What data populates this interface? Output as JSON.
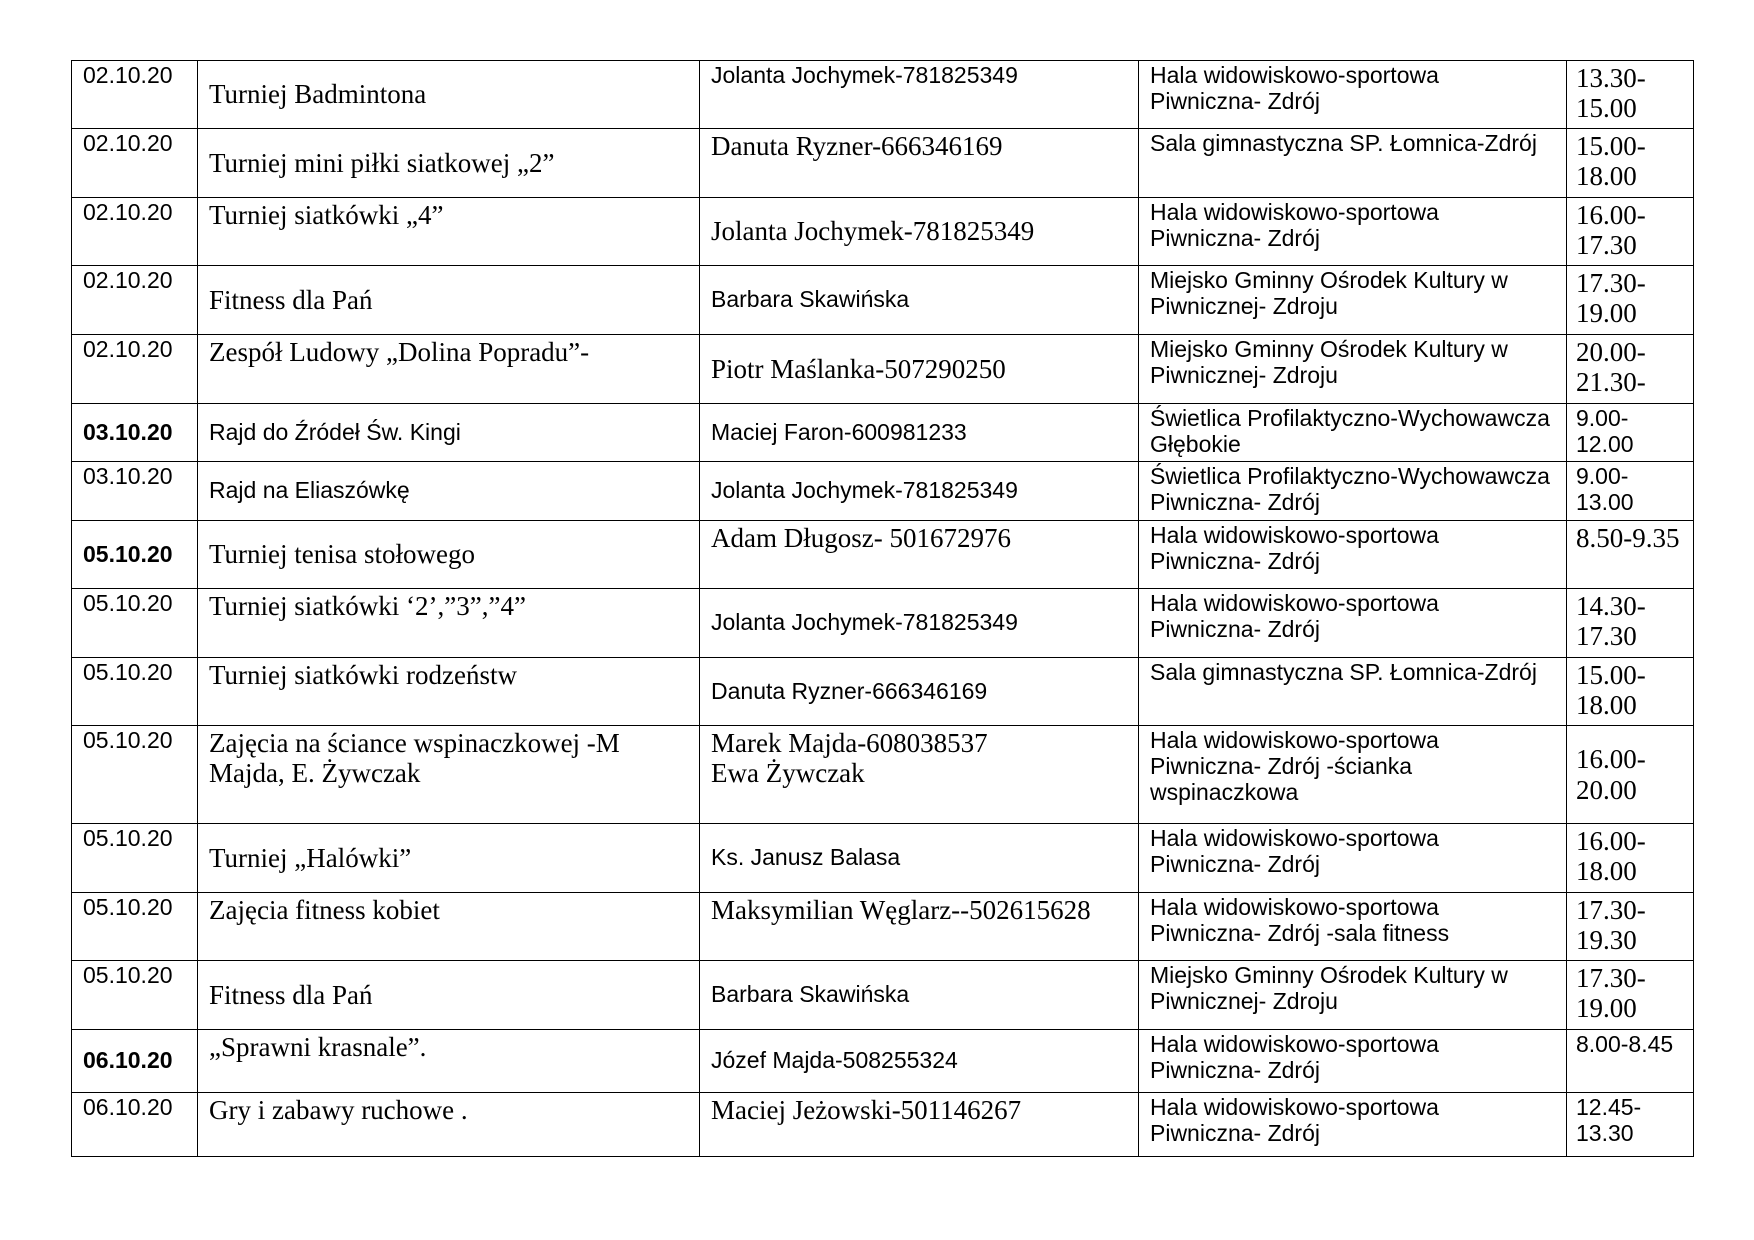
{
  "rows": [
    {
      "date": "02.10.20",
      "activity": "Turniej Badmintona",
      "contact": "Jolanta Jochymek-781825349",
      "place": "Hala widowiskowo-sportowa Piwniczna- Zdrój",
      "time": "13.30-15.00"
    },
    {
      "date": "02.10.20",
      "activity": "Turniej mini piłki siatkowej „2”",
      "contact": "Danuta Ryzner-666346169",
      "place": "Sala gimnastyczna SP. Łomnica-Zdrój",
      "time": "15.00-18.00"
    },
    {
      "date": "02.10.20",
      "activity": "Turniej siatkówki „4”",
      "contact": "Jolanta Jochymek-781825349",
      "place": "Hala widowiskowo-sportowa Piwniczna- Zdrój",
      "time": "16.00-17.30"
    },
    {
      "date": "02.10.20",
      "activity": "Fitness dla Pań",
      "contact": "Barbara Skawińska",
      "place": "Miejsko Gminny Ośrodek Kultury w Piwnicznej- Zdroju",
      "time": "17.30-19.00"
    },
    {
      "date": "02.10.20",
      "activity": "Zespół Ludowy  „Dolina Popradu”-",
      "contact": "Piotr Maślanka-507290250",
      "place": "Miejsko Gminny Ośrodek Kultury w Piwnicznej- Zdroju",
      "time": "20.00-21.30-"
    },
    {
      "date": "03.10.20",
      "activity": "Rajd do Źródeł Św. Kingi",
      "contact": "Maciej Faron-600981233",
      "place": "Świetlica Profilaktyczno-Wychowawcza Głębokie",
      "time": "9.00-12.00"
    },
    {
      "date": "03.10.20",
      "activity": "Rajd na Eliaszówkę",
      "contact": "Jolanta Jochymek-781825349",
      "place": "Świetlica Profilaktyczno-Wychowawcza Piwniczna- Zdrój",
      "time": "9.00-13.00"
    },
    {
      "date": "05.10.20",
      "activity": "Turniej tenisa stołowego",
      "contact": "Adam  Długosz- 501672976",
      "place": "Hala widowiskowo-sportowa Piwniczna- Zdrój",
      "time": "8.50-9.35"
    },
    {
      "date": "05.10.20",
      "activity": "Turniej siatkówki ‘2’,”3”,”4”",
      "contact": "Jolanta Jochymek-781825349",
      "place": "Hala widowiskowo-sportowa Piwniczna- Zdrój",
      "time": "14.30-17.30"
    },
    {
      "date": "05.10.20",
      "activity": "Turniej siatkówki rodzeństw",
      "contact": "Danuta Ryzner-666346169",
      "place": "Sala gimnastyczna SP. Łomnica-Zdrój",
      "time": "15.00-18.00"
    },
    {
      "date": "05.10.20",
      "activity": "Zajęcia na ściance wspinaczkowej -M Majda, E. Żywczak",
      "contact": "Marek Majda-608038537\nEwa Żywczak",
      "place": "Hala widowiskowo-sportowa Piwniczna- Zdrój -ścianka wspinaczkowa",
      "time": "16.00-20.00"
    },
    {
      "date": "05.10.20",
      "activity": "Turniej „Halówki”",
      "contact": "Ks. Janusz Balasa",
      "place": "Hala widowiskowo-sportowa Piwniczna- Zdrój",
      "time": "16.00-18.00"
    },
    {
      "date": "05.10.20",
      "activity": "Zajęcia fitness  kobiet",
      "contact": "Maksymilian Węglarz--502615628",
      "place": "Hala widowiskowo-sportowa Piwniczna- Zdrój -sala fitness",
      "time": "17.30-19.30"
    },
    {
      "date": "05.10.20",
      "activity": "Fitness dla Pań",
      "contact": "Barbara Skawińska",
      "place": "Miejsko Gminny Ośrodek Kultury w Piwnicznej- Zdroju",
      "time": "17.30-19.00"
    },
    {
      "date": "06.10.20",
      "activity": "„Sprawni krasnale”.",
      "contact": "Józef Majda-508255324",
      "place": "Hala widowiskowo-sportowa Piwniczna- Zdrój",
      "time": "8.00-8.45"
    },
    {
      "date": "06.10.20",
      "activity": "Gry i zabawy ruchowe .",
      "contact": "Maciej Jeżowski-501146267",
      "place": "Hala widowiskowo-sportowa Piwniczna- Zdrój",
      "time": "12.45-13.30"
    }
  ]
}
